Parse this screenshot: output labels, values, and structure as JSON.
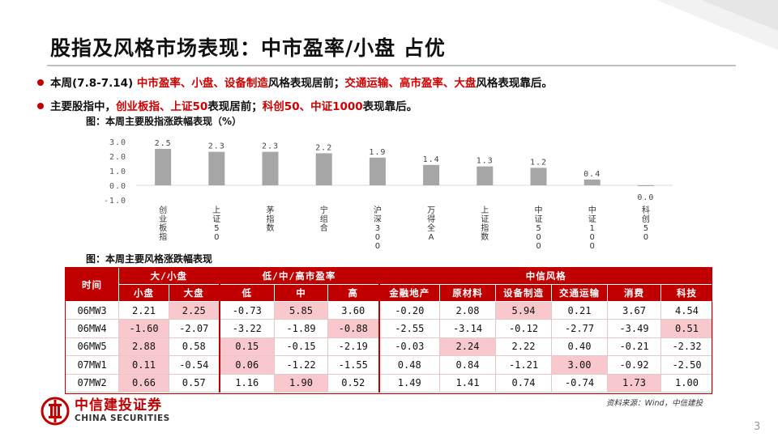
{
  "title": "股指及风格市场表现：中市盈率/小盘 占优",
  "bullets": [
    [
      {
        "t": "本周(7.8-7.14) ",
        "hl": false
      },
      {
        "t": "中市盈率、小盘、设备制造",
        "hl": true
      },
      {
        "t": "风格表现居前；",
        "hl": false
      },
      {
        "t": "交通运输、高市盈率、大盘",
        "hl": true
      },
      {
        "t": "风格表现靠后。",
        "hl": false
      }
    ],
    [
      {
        "t": "主要股指中，",
        "hl": false
      },
      {
        "t": "创业板指、上证50",
        "hl": true
      },
      {
        "t": "表现居前；",
        "hl": false
      },
      {
        "t": "科创50、中证1000",
        "hl": true
      },
      {
        "t": "表现靠后。",
        "hl": false
      }
    ]
  ],
  "chart_caption": "图：本周主要股指涨跌幅表现（%）",
  "table_caption": "图：本周主要风格涨跌幅表现",
  "chart_data": {
    "type": "bar",
    "categories": [
      "创业板指",
      "上证50",
      "茅指数",
      "宁组合",
      "沪深300",
      "万得全A",
      "上证指数",
      "中证500",
      "中证1000",
      "科创50"
    ],
    "values": [
      2.5,
      2.3,
      2.3,
      2.2,
      1.9,
      1.4,
      1.3,
      1.2,
      0.4,
      0.0
    ],
    "value_labels": [
      "2.5",
      "2.3",
      "2.3",
      "2.2",
      "1.9",
      "1.4",
      "1.3",
      "1.2",
      "0.4",
      "0.0"
    ],
    "ylim": [
      -1.0,
      3.0
    ],
    "yticks": [
      "3.0",
      "2.0",
      "1.0",
      "0.0",
      "-1.0"
    ],
    "ytick_values": [
      3,
      2,
      1,
      0,
      -1
    ],
    "bar_color": "#a6a6a6",
    "grid": false,
    "legend": "none"
  },
  "table": {
    "row_header": "时间",
    "groups": [
      {
        "label": "大/小盘",
        "span": 2
      },
      {
        "label": "低/中/高市盈率",
        "span": 3
      },
      {
        "label": "中信风格",
        "span": 6
      }
    ],
    "columns": [
      "小盘",
      "大盘",
      "低",
      "中",
      "高",
      "金融地产",
      "原材料",
      "设备制造",
      "交通运输",
      "消费",
      "科技"
    ],
    "rows": [
      {
        "label": "06MW3",
        "values": [
          "2.21",
          "2.25",
          "-0.73",
          "5.85",
          "3.60",
          "-0.20",
          "2.08",
          "5.94",
          "0.21",
          "3.67",
          "4.54"
        ],
        "highlight": [
          false,
          true,
          false,
          true,
          false,
          false,
          false,
          true,
          false,
          false,
          false
        ]
      },
      {
        "label": "06MW4",
        "values": [
          "-1.60",
          "-2.07",
          "-3.22",
          "-1.89",
          "-0.88",
          "-2.55",
          "-3.14",
          "-0.12",
          "-2.77",
          "-3.49",
          "0.51"
        ],
        "highlight": [
          true,
          false,
          false,
          false,
          true,
          false,
          false,
          false,
          false,
          false,
          true
        ]
      },
      {
        "label": "06MW5",
        "values": [
          "2.88",
          "0.58",
          "0.15",
          "-0.15",
          "-2.19",
          "-0.03",
          "2.24",
          "2.22",
          "0.40",
          "-0.21",
          "-2.32"
        ],
        "highlight": [
          true,
          false,
          true,
          false,
          false,
          false,
          true,
          false,
          false,
          false,
          false
        ]
      },
      {
        "label": "07MW1",
        "values": [
          "0.11",
          "-0.54",
          "0.06",
          "-1.22",
          "-1.55",
          "0.48",
          "0.84",
          "-1.21",
          "3.00",
          "-0.92",
          "-2.50"
        ],
        "highlight": [
          true,
          false,
          true,
          false,
          false,
          false,
          false,
          false,
          true,
          false,
          false
        ]
      },
      {
        "label": "07MW2",
        "values": [
          "0.66",
          "0.57",
          "1.16",
          "1.90",
          "0.52",
          "1.49",
          "1.41",
          "0.74",
          "-0.74",
          "1.73",
          "1.00"
        ],
        "highlight": [
          true,
          false,
          false,
          true,
          false,
          false,
          false,
          false,
          false,
          true,
          false
        ]
      }
    ]
  },
  "source": "资料来源：Wind，中信建投",
  "logo": {
    "cn": "中信建投证券",
    "en": "CHINA SECURITIES",
    "icon": "citic-logo-icon"
  },
  "page_number": "3",
  "colors": {
    "accent": "#c00000",
    "highlight": "#f8c8cc",
    "bar": "#a6a6a6"
  }
}
